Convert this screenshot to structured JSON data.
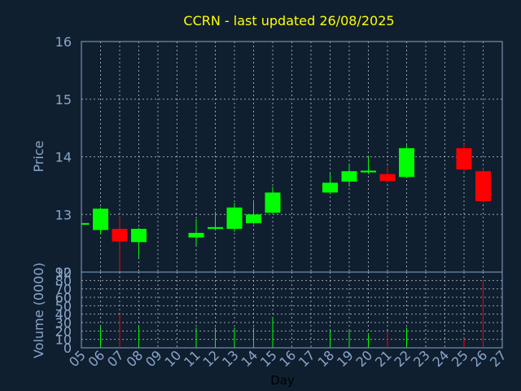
{
  "chart_data": {
    "type": "candlestick",
    "title": "CCRN - last updated 26/08/2025",
    "xlabel": "Day",
    "price_panel": {
      "ylabel": "Price",
      "ylim": [
        12,
        16
      ],
      "yticks": [
        "12",
        "13",
        "14",
        "15",
        "16"
      ]
    },
    "volume_panel": {
      "ylabel": "Volume (0000)",
      "ylim": [
        0,
        90
      ],
      "yticks": [
        "0",
        "10",
        "20",
        "30",
        "40",
        "50",
        "60",
        "70",
        "80",
        "90"
      ]
    },
    "x_ticks": [
      "05",
      "06",
      "07",
      "08",
      "09",
      "10",
      "11",
      "12",
      "13",
      "14",
      "15",
      "16",
      "17",
      "18",
      "19",
      "20",
      "21",
      "22",
      "23",
      "24",
      "25",
      "26",
      "27"
    ],
    "x_range": [
      5,
      27
    ],
    "grid": true,
    "colors": {
      "background": "#0f1f30",
      "up": "#00ff00",
      "down": "#ff0000",
      "axis": "#8aa6c8",
      "title": "#ffff00",
      "grid": "#d0d8e0"
    },
    "candles": [
      {
        "day": 5,
        "open": 12.85,
        "close": 12.85,
        "high": 12.85,
        "low": 12.85
      },
      {
        "day": 6,
        "open": 12.73,
        "close": 13.1,
        "high": 13.12,
        "low": 12.65
      },
      {
        "day": 7,
        "open": 12.75,
        "close": 12.53,
        "high": 12.95,
        "low": 12.0
      },
      {
        "day": 8,
        "open": 12.52,
        "close": 12.75,
        "high": 12.77,
        "low": 12.25
      },
      {
        "day": 11,
        "open": 12.6,
        "close": 12.68,
        "high": 12.92,
        "low": 12.45
      },
      {
        "day": 12,
        "open": 12.75,
        "close": 12.78,
        "high": 13.05,
        "low": 12.72
      },
      {
        "day": 13,
        "open": 12.75,
        "close": 13.12,
        "high": 13.2,
        "low": 12.7
      },
      {
        "day": 14,
        "open": 12.85,
        "close": 13.0,
        "high": 13.25,
        "low": 12.83
      },
      {
        "day": 15,
        "open": 13.03,
        "close": 13.38,
        "high": 13.48,
        "low": 13.0
      },
      {
        "day": 18,
        "open": 13.38,
        "close": 13.55,
        "high": 13.72,
        "low": 13.35
      },
      {
        "day": 19,
        "open": 13.57,
        "close": 13.75,
        "high": 13.85,
        "low": 13.48
      },
      {
        "day": 20,
        "open": 13.73,
        "close": 13.76,
        "high": 14.0,
        "low": 13.7
      },
      {
        "day": 21,
        "open": 13.7,
        "close": 13.58,
        "high": 13.83,
        "low": 13.55
      },
      {
        "day": 22,
        "open": 13.65,
        "close": 14.15,
        "high": 14.2,
        "low": 13.63
      },
      {
        "day": 25,
        "open": 14.15,
        "close": 13.78,
        "high": 14.22,
        "low": 13.75
      },
      {
        "day": 26,
        "open": 13.75,
        "close": 13.23,
        "high": 13.8,
        "low": 13.2
      }
    ],
    "volume": [
      {
        "day": 6,
        "value": 25,
        "direction": "up"
      },
      {
        "day": 7,
        "value": 40,
        "direction": "down"
      },
      {
        "day": 8,
        "value": 27,
        "direction": "up"
      },
      {
        "day": 11,
        "value": 24,
        "direction": "up"
      },
      {
        "day": 12,
        "value": 24,
        "direction": "up"
      },
      {
        "day": 13,
        "value": 24,
        "direction": "up"
      },
      {
        "day": 14,
        "value": 24,
        "direction": "up"
      },
      {
        "day": 15,
        "value": 36,
        "direction": "up"
      },
      {
        "day": 18,
        "value": 21,
        "direction": "up"
      },
      {
        "day": 19,
        "value": 21,
        "direction": "up"
      },
      {
        "day": 20,
        "value": 17,
        "direction": "up"
      },
      {
        "day": 21,
        "value": 19,
        "direction": "down"
      },
      {
        "day": 22,
        "value": 24,
        "direction": "up"
      },
      {
        "day": 25,
        "value": 11,
        "direction": "down"
      },
      {
        "day": 26,
        "value": 80,
        "direction": "down"
      }
    ]
  }
}
